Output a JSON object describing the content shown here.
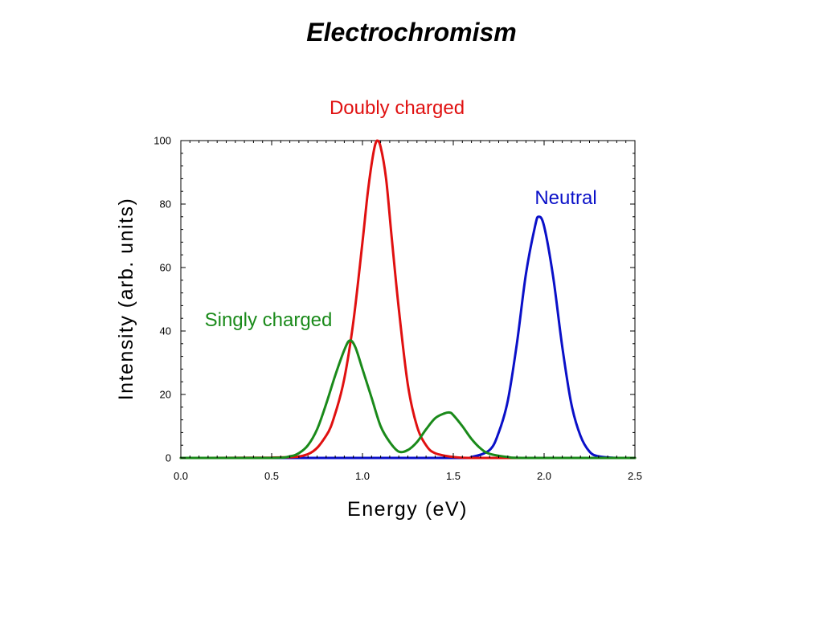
{
  "page": {
    "title": "Electrochromism"
  },
  "chart_data": {
    "type": "line",
    "title": "",
    "xlabel": "Energy (eV)",
    "ylabel": "Intensity (arb. units)",
    "xlim": [
      0,
      2.5
    ],
    "ylim": [
      0,
      100
    ],
    "xticks": [
      "0.0",
      "0.5",
      "1.0",
      "1.5",
      "2.0",
      "2.5"
    ],
    "yticks": [
      "0",
      "20",
      "40",
      "60",
      "80",
      "100"
    ],
    "grid": false,
    "legend": "none",
    "series": [
      {
        "name": "Doubly charged",
        "color": "#e01010",
        "label_pos": "above-peak",
        "x": [
          0.0,
          0.5,
          0.7,
          0.8,
          0.85,
          0.9,
          0.95,
          1.0,
          1.03,
          1.06,
          1.08,
          1.1,
          1.13,
          1.16,
          1.2,
          1.25,
          1.3,
          1.35,
          1.4,
          1.5,
          1.6,
          1.8,
          2.5
        ],
        "y": [
          0,
          0.1,
          1.2,
          7,
          14,
          25,
          43,
          68,
          84,
          96,
          100,
          98,
          88,
          70,
          47,
          23,
          10,
          4,
          1.5,
          0.3,
          0,
          0,
          0
        ]
      },
      {
        "name": "Singly charged",
        "color": "#1a8a1a",
        "label_pos": "left",
        "x": [
          0.0,
          0.5,
          0.6,
          0.65,
          0.7,
          0.75,
          0.8,
          0.85,
          0.9,
          0.93,
          0.96,
          1.0,
          1.05,
          1.1,
          1.15,
          1.2,
          1.25,
          1.3,
          1.35,
          1.4,
          1.45,
          1.48,
          1.5,
          1.55,
          1.6,
          1.65,
          1.7,
          1.8,
          1.9,
          2.5
        ],
        "y": [
          0,
          0,
          0.5,
          1.5,
          4,
          9,
          17,
          26,
          34,
          37,
          35,
          28,
          19,
          10,
          5,
          2,
          2.5,
          5,
          9,
          12.5,
          14,
          14.3,
          13.5,
          10,
          6,
          3,
          1.3,
          0.3,
          0,
          0
        ]
      },
      {
        "name": "Neutral",
        "color": "#0a10c8",
        "label_pos": "above-right",
        "x": [
          0.0,
          1.5,
          1.6,
          1.7,
          1.75,
          1.8,
          1.85,
          1.9,
          1.95,
          1.97,
          2.0,
          2.05,
          2.1,
          2.15,
          2.2,
          2.25,
          2.3,
          2.4,
          2.5
        ],
        "y": [
          0,
          0,
          0.3,
          2.5,
          8,
          18,
          36,
          58,
          73,
          76,
          73,
          57,
          35,
          17,
          7,
          2,
          0.5,
          0,
          0
        ]
      }
    ]
  }
}
